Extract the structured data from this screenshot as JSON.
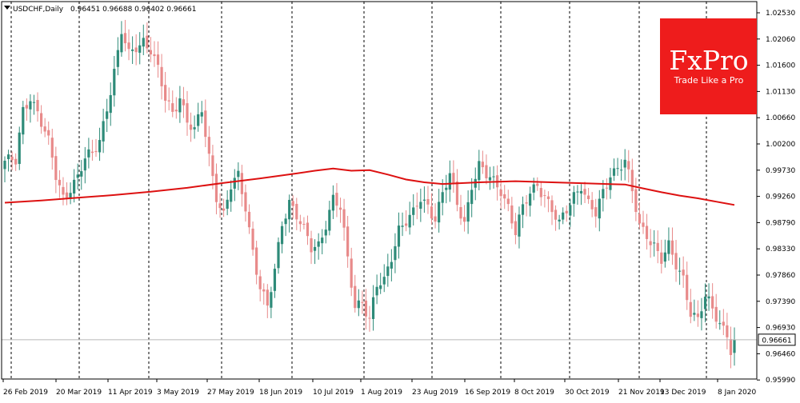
{
  "window": {
    "symbol_label": "USDCHF,Daily",
    "ohlc_readout": "0.96451 0.96688 0.96402 0.96661"
  },
  "brand": {
    "logo_text": "FxPro",
    "tagline": "Trade Like a Pro",
    "color": "#ee1c1c"
  },
  "colors": {
    "bull": "#2e8b79",
    "bear": "#e88a8a",
    "ma": "#dd1111",
    "price_tag_bg": "#ffffff",
    "price_tag_border": "#000000"
  },
  "chart_data": {
    "type": "candlestick",
    "symbol": "USDCHF",
    "timeframe": "Daily",
    "last_price": 0.96661,
    "ylim": [
      0.9595,
      1.0278
    ],
    "y_ticks": [
      "1.02530",
      "1.02060",
      "1.01600",
      "1.01130",
      "1.00660",
      "1.00200",
      "0.99730",
      "0.99260",
      "0.98790",
      "0.98330",
      "0.97860",
      "0.97390",
      "0.96930",
      "0.96460",
      "0.95990"
    ],
    "x_ticks": [
      "26 Feb 2019",
      "20 Mar 2019",
      "11 Apr 2019",
      "3 May 2019",
      "27 May 2019",
      "18 Jun 2019",
      "10 Jul 2019",
      "1 Aug 2019",
      "23 Aug 2019",
      "16 Sep 2019",
      "8 Oct 2019",
      "30 Oct 2019",
      "21 Nov 2019",
      "13 Dec 2019",
      "8 Jan 2020"
    ],
    "close_path": [
      [
        0,
        0.999
      ],
      [
        3,
        0.9985
      ],
      [
        5,
        1.008
      ],
      [
        7,
        1.011
      ],
      [
        9,
        1.008
      ],
      [
        12,
        1.002
      ],
      [
        14,
        0.996
      ],
      [
        16,
        0.9925
      ],
      [
        18,
        0.9945
      ],
      [
        20,
        0.996
      ],
      [
        22,
        0.999
      ],
      [
        24,
        1.0
      ],
      [
        26,
        1.003
      ],
      [
        28,
        1.009
      ],
      [
        30,
        1.015
      ],
      [
        31,
        1.018
      ],
      [
        32,
        1.022
      ],
      [
        34,
        1.018
      ],
      [
        36,
        1.02
      ],
      [
        38,
        1.021
      ],
      [
        40,
        1.019
      ],
      [
        42,
        1.015
      ],
      [
        44,
        1.01
      ],
      [
        46,
        1.008
      ],
      [
        48,
        1.011
      ],
      [
        50,
        1.006
      ],
      [
        52,
        1.004
      ],
      [
        54,
        1.008
      ],
      [
        56,
        1.0
      ],
      [
        58,
        0.993
      ],
      [
        60,
        0.989
      ],
      [
        62,
        0.994
      ],
      [
        64,
        0.996
      ],
      [
        66,
        0.991
      ],
      [
        68,
        0.983
      ],
      [
        70,
        0.976
      ],
      [
        72,
        0.972
      ],
      [
        74,
        0.979
      ],
      [
        76,
        0.988
      ],
      [
        78,
        0.992
      ],
      [
        80,
        0.989
      ],
      [
        82,
        0.986
      ],
      [
        84,
        0.983
      ],
      [
        86,
        0.984
      ],
      [
        88,
        0.988
      ],
      [
        90,
        0.992
      ],
      [
        92,
        0.99
      ],
      [
        94,
        0.981
      ],
      [
        96,
        0.973
      ],
      [
        98,
        0.974
      ],
      [
        100,
        0.97
      ],
      [
        102,
        0.976
      ],
      [
        104,
        0.977
      ],
      [
        106,
        0.982
      ],
      [
        108,
        0.987
      ],
      [
        110,
        0.988
      ],
      [
        112,
        0.989
      ],
      [
        114,
        0.992
      ],
      [
        116,
        0.991
      ],
      [
        118,
        0.989
      ],
      [
        120,
        0.993
      ],
      [
        122,
        0.996
      ],
      [
        124,
        0.991
      ],
      [
        126,
        0.988
      ],
      [
        128,
        0.995
      ],
      [
        130,
        0.998
      ],
      [
        132,
        0.996
      ],
      [
        134,
        0.995
      ],
      [
        136,
        0.994
      ],
      [
        138,
        0.991
      ],
      [
        140,
        0.986
      ],
      [
        142,
        0.99
      ],
      [
        144,
        0.993
      ],
      [
        146,
        0.995
      ],
      [
        148,
        0.993
      ],
      [
        150,
        0.99
      ],
      [
        152,
        0.987
      ],
      [
        154,
        0.99
      ],
      [
        156,
        0.993
      ],
      [
        158,
        0.995
      ],
      [
        160,
        0.991
      ],
      [
        162,
        0.989
      ],
      [
        164,
        0.993
      ],
      [
        166,
        0.997
      ],
      [
        168,
        0.998
      ],
      [
        170,
        0.999
      ],
      [
        172,
        0.993
      ],
      [
        174,
        0.987
      ],
      [
        176,
        0.986
      ],
      [
        178,
        0.984
      ],
      [
        180,
        0.981
      ],
      [
        182,
        0.983
      ],
      [
        184,
        0.98
      ],
      [
        186,
        0.978
      ],
      [
        188,
        0.972
      ],
      [
        190,
        0.97
      ],
      [
        192,
        0.974
      ],
      [
        194,
        0.972
      ],
      [
        196,
        0.97
      ],
      [
        198,
        0.968
      ],
      [
        199,
        0.9648
      ],
      [
        200,
        0.9666
      ]
    ],
    "moving_average": [
      [
        0,
        0.9914
      ],
      [
        10,
        0.9918
      ],
      [
        20,
        0.9923
      ],
      [
        30,
        0.9928
      ],
      [
        40,
        0.9934
      ],
      [
        50,
        0.9941
      ],
      [
        60,
        0.995
      ],
      [
        70,
        0.9958
      ],
      [
        80,
        0.9967
      ],
      [
        85,
        0.9972
      ],
      [
        90,
        0.9976
      ],
      [
        95,
        0.9972
      ],
      [
        100,
        0.9973
      ],
      [
        105,
        0.9965
      ],
      [
        110,
        0.9956
      ],
      [
        115,
        0.9951
      ],
      [
        120,
        0.9948
      ],
      [
        130,
        0.9951
      ],
      [
        140,
        0.9953
      ],
      [
        150,
        0.9951
      ],
      [
        160,
        0.9949
      ],
      [
        165,
        0.9948
      ],
      [
        170,
        0.9947
      ],
      [
        175,
        0.994
      ],
      [
        180,
        0.9933
      ],
      [
        185,
        0.9927
      ],
      [
        190,
        0.9922
      ],
      [
        195,
        0.9916
      ],
      [
        200,
        0.991
      ]
    ]
  }
}
